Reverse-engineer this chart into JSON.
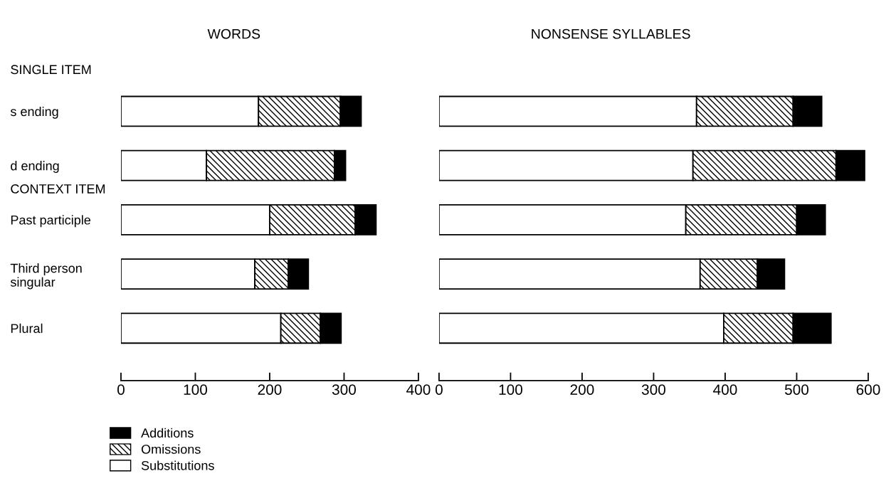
{
  "chart_data": [
    {
      "type": "bar",
      "orientation": "horizontal",
      "stacked": true,
      "title": "WORDS",
      "categories": [
        "s ending",
        "d ending",
        "Past participle",
        "Third person\nsingular",
        "Plural"
      ],
      "series": [
        {
          "name": "Substitutions",
          "color": "#ffffff",
          "values": [
            185,
            115,
            200,
            180,
            215
          ]
        },
        {
          "name": "Omissions",
          "color": "#000000",
          "values": [
            110,
            172,
            115,
            45,
            53
          ]
        },
        {
          "name": "Additions",
          "color": "#000000",
          "values": [
            28,
            15,
            28,
            27,
            28
          ]
        }
      ],
      "xlim": [
        0,
        400
      ],
      "xticks": [
        0,
        100,
        200,
        300,
        400
      ],
      "grid": false,
      "legend": "bottom left",
      "annotations": [
        "SINGLE ITEM",
        "CONTEXT ITEM"
      ]
    },
    {
      "type": "bar",
      "orientation": "horizontal",
      "stacked": true,
      "title": "NONSENSE SYLLABLES",
      "categories": [
        null,
        null,
        null,
        null,
        null
      ],
      "series": [
        {
          "color": "#ffffff",
          "values": [
            360,
            355,
            345,
            365,
            398
          ]
        },
        {
          "color": "#000000",
          "values": [
            135,
            200,
            155,
            80,
            97
          ]
        },
        {
          "color": "#000000",
          "values": [
            40,
            40,
            40,
            38,
            53
          ]
        }
      ],
      "xlim": [
        0,
        600
      ],
      "xticks": [
        0,
        100,
        200,
        300,
        400,
        500,
        600
      ],
      "grid": false
    }
  ]
}
